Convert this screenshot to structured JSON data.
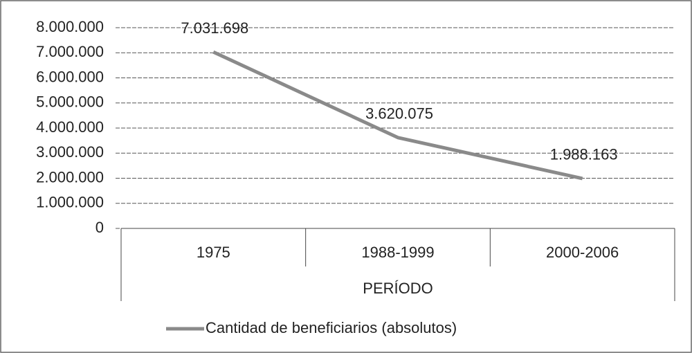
{
  "chart_data": {
    "type": "line",
    "x_label": "PERÍODO",
    "categories": [
      "1975",
      "1988-1999",
      "2000-2006"
    ],
    "series": [
      {
        "name": "Cantidad de beneficiarios (absolutos)",
        "color": "#8a8a8a",
        "values": [
          7031698,
          3620075,
          1988163
        ],
        "value_labels": [
          "7.031.698",
          "3.620.075",
          "1.988.163"
        ]
      }
    ],
    "ylim": [
      0,
      8000000
    ],
    "yticks": [
      {
        "value": 0,
        "label": "0"
      },
      {
        "value": 1000000,
        "label": "1.000.000"
      },
      {
        "value": 2000000,
        "label": "2.000.000"
      },
      {
        "value": 3000000,
        "label": "3.000.000"
      },
      {
        "value": 4000000,
        "label": "4.000.000"
      },
      {
        "value": 5000000,
        "label": "5.000.000"
      },
      {
        "value": 6000000,
        "label": "6.000.000"
      },
      {
        "value": 7000000,
        "label": "7.000.000"
      },
      {
        "value": 8000000,
        "label": "8.000.000"
      }
    ],
    "grid": true,
    "legend": "bottom"
  }
}
